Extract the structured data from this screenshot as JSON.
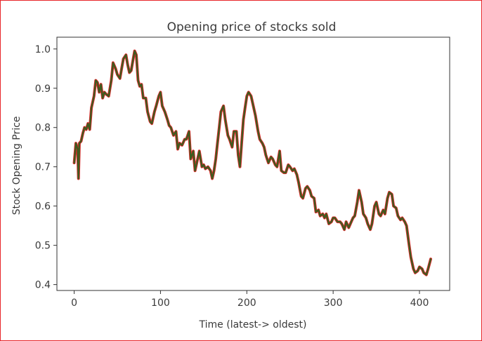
{
  "chart_data": {
    "type": "line",
    "title": "Opening price of stocks sold",
    "xlabel": "Time (latest-> oldest)",
    "ylabel": "Stock Opening Price",
    "xlim": [
      -20,
      435
    ],
    "ylim": [
      0.385,
      1.03
    ],
    "xticks": [
      0,
      100,
      200,
      300,
      400
    ],
    "yticks": [
      0.4,
      0.5,
      0.6,
      0.7,
      0.8,
      0.9,
      1.0
    ],
    "xtick_labels": [
      "0",
      "100",
      "200",
      "300",
      "400"
    ],
    "ytick_labels": [
      "0.4",
      "0.5",
      "0.6",
      "0.7",
      "0.8",
      "0.9",
      "1.0"
    ],
    "grid": false,
    "series": [
      {
        "color": "#e8262a",
        "line_color": "#3f5a1f",
        "x": [
          0,
          2,
          4,
          5,
          6,
          8,
          10,
          12,
          14,
          16,
          18,
          20,
          23,
          25,
          27,
          29,
          31,
          33,
          35,
          37,
          40,
          43,
          45,
          48,
          50,
          53,
          55,
          57,
          60,
          62,
          64,
          66,
          68,
          70,
          72,
          74,
          76,
          78,
          80,
          83,
          85,
          88,
          90,
          93,
          95,
          98,
          100,
          102,
          105,
          108,
          110,
          112,
          115,
          118,
          120,
          122,
          125,
          128,
          130,
          133,
          135,
          138,
          140,
          143,
          145,
          148,
          150,
          152,
          155,
          158,
          160,
          162,
          164,
          166,
          168,
          170,
          173,
          175,
          178,
          180,
          183,
          185,
          188,
          190,
          192,
          194,
          196,
          198,
          200,
          202,
          205,
          208,
          210,
          213,
          215,
          218,
          220,
          222,
          225,
          228,
          230,
          233,
          235,
          238,
          240,
          243,
          245,
          248,
          250,
          253,
          255,
          258,
          260,
          263,
          265,
          268,
          270,
          273,
          275,
          278,
          280,
          283,
          285,
          288,
          290,
          292,
          295,
          298,
          300,
          302,
          305,
          308,
          310,
          313,
          315,
          318,
          320,
          323,
          325,
          328,
          330,
          333,
          335,
          338,
          340,
          343,
          345,
          348,
          350,
          353,
          355,
          358,
          360,
          363,
          365,
          368,
          370,
          373,
          375,
          378,
          380,
          383,
          385,
          388,
          390,
          393,
          395,
          398,
          400,
          403,
          405,
          408,
          410,
          413
        ],
        "y": [
          0.71,
          0.76,
          0.745,
          0.67,
          0.76,
          0.765,
          0.785,
          0.8,
          0.795,
          0.81,
          0.795,
          0.85,
          0.88,
          0.92,
          0.915,
          0.89,
          0.91,
          0.875,
          0.89,
          0.885,
          0.88,
          0.92,
          0.965,
          0.95,
          0.935,
          0.925,
          0.95,
          0.975,
          0.985,
          0.96,
          0.94,
          0.945,
          0.97,
          0.995,
          0.985,
          0.92,
          0.905,
          0.91,
          0.875,
          0.875,
          0.84,
          0.815,
          0.81,
          0.84,
          0.855,
          0.88,
          0.89,
          0.855,
          0.84,
          0.82,
          0.805,
          0.8,
          0.78,
          0.79,
          0.745,
          0.76,
          0.755,
          0.77,
          0.77,
          0.79,
          0.72,
          0.74,
          0.69,
          0.72,
          0.74,
          0.7,
          0.705,
          0.695,
          0.7,
          0.69,
          0.67,
          0.69,
          0.72,
          0.76,
          0.8,
          0.84,
          0.855,
          0.82,
          0.78,
          0.77,
          0.75,
          0.79,
          0.79,
          0.73,
          0.7,
          0.76,
          0.82,
          0.85,
          0.88,
          0.89,
          0.88,
          0.85,
          0.83,
          0.79,
          0.77,
          0.76,
          0.75,
          0.73,
          0.71,
          0.725,
          0.72,
          0.705,
          0.7,
          0.74,
          0.69,
          0.685,
          0.685,
          0.705,
          0.7,
          0.69,
          0.695,
          0.68,
          0.66,
          0.625,
          0.62,
          0.645,
          0.65,
          0.64,
          0.625,
          0.62,
          0.585,
          0.59,
          0.575,
          0.58,
          0.57,
          0.58,
          0.555,
          0.56,
          0.57,
          0.57,
          0.56,
          0.56,
          0.555,
          0.54,
          0.56,
          0.545,
          0.555,
          0.57,
          0.575,
          0.61,
          0.64,
          0.61,
          0.58,
          0.57,
          0.555,
          0.54,
          0.555,
          0.6,
          0.61,
          0.58,
          0.575,
          0.59,
          0.58,
          0.62,
          0.635,
          0.63,
          0.6,
          0.595,
          0.575,
          0.565,
          0.57,
          0.56,
          0.55,
          0.5,
          0.47,
          0.44,
          0.43,
          0.435,
          0.445,
          0.44,
          0.43,
          0.425,
          0.44,
          0.465
        ]
      }
    ]
  }
}
